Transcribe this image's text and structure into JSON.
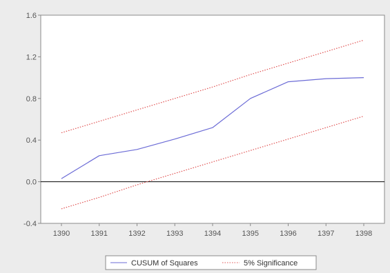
{
  "chart_data": {
    "type": "line",
    "title": "",
    "xlabel": "",
    "ylabel": "",
    "x": [
      1390,
      1391,
      1392,
      1393,
      1394,
      1395,
      1396,
      1397,
      1398
    ],
    "xlim": [
      1390,
      1398
    ],
    "ylim": [
      -0.4,
      1.6
    ],
    "yticks": [
      -0.4,
      0.0,
      0.4,
      0.8,
      1.2,
      1.6
    ],
    "ytick_labels": [
      "-0.4",
      "0.0",
      "0.4",
      "0.8",
      "1.2",
      "1.6"
    ],
    "xtick_labels": [
      "1390",
      "1391",
      "1392",
      "1393",
      "1394",
      "1395",
      "1396",
      "1397",
      "1398"
    ],
    "zero_line": true,
    "grid": false,
    "legend_position": "bottom-center",
    "series": [
      {
        "name": "CUSUM of Squares",
        "color": "#6b6bd6",
        "style": "solid",
        "values": [
          0.03,
          0.25,
          0.31,
          0.41,
          0.52,
          0.8,
          0.96,
          0.99,
          1.0
        ]
      },
      {
        "name": "5% Significance",
        "color": "#e05050",
        "style": "dotted",
        "values": [
          0.47,
          0.58,
          0.69,
          0.8,
          0.91,
          1.03,
          1.14,
          1.25,
          1.36
        ]
      },
      {
        "name": "",
        "color": "#e05050",
        "style": "dotted",
        "values": [
          -0.26,
          -0.15,
          -0.03,
          0.08,
          0.19,
          0.3,
          0.41,
          0.52,
          0.63
        ]
      }
    ]
  }
}
